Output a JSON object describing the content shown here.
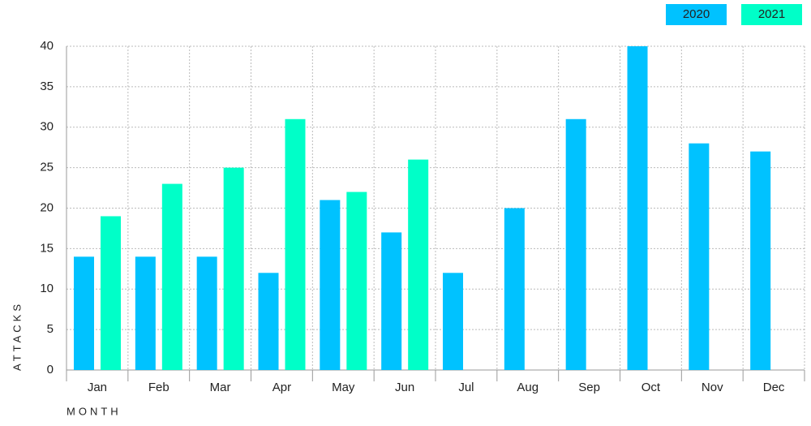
{
  "chart_data": {
    "type": "bar",
    "x_label": "MONTH",
    "y_label": "ATTACKS",
    "categories": [
      "Jan",
      "Feb",
      "Mar",
      "Apr",
      "May",
      "Jun",
      "Jul",
      "Aug",
      "Sep",
      "Oct",
      "Nov",
      "Dec"
    ],
    "series": [
      {
        "name": "2020",
        "color": "#00c2ff",
        "values": [
          14,
          14,
          14,
          12,
          21,
          17,
          12,
          20,
          31,
          40,
          28,
          27
        ]
      },
      {
        "name": "2021",
        "color": "#00ffc8",
        "values": [
          19,
          23,
          25,
          31,
          22,
          26,
          null,
          null,
          null,
          null,
          null,
          null
        ]
      }
    ],
    "ylim": [
      0,
      40
    ],
    "yticks": [
      0,
      5,
      10,
      15,
      20,
      25,
      30,
      35,
      40
    ],
    "grid": true,
    "legend": "top-right"
  }
}
